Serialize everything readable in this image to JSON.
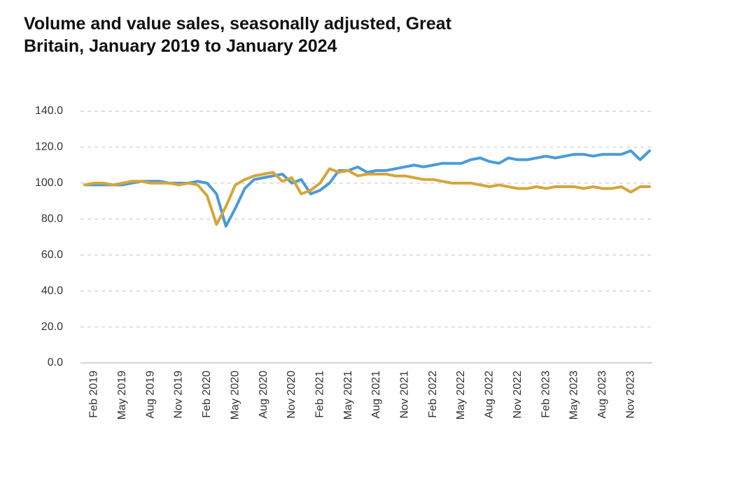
{
  "chart_data": {
    "type": "line",
    "title": "Volume and value sales, seasonally adjusted, Great Britain, January 2019 to January 2024",
    "categories": [
      null,
      "Feb 2019",
      null,
      null,
      "May 2019",
      null,
      null,
      "Aug 2019",
      null,
      null,
      "Nov 2019",
      null,
      null,
      "Feb 2020",
      null,
      null,
      "May 2020",
      null,
      null,
      "Aug 2020",
      null,
      null,
      "Nov 2020",
      null,
      null,
      "Feb 2021",
      null,
      null,
      "May 2021",
      null,
      null,
      "Aug 2021",
      null,
      null,
      "Nov 2021",
      null,
      null,
      "Feb 2022",
      null,
      null,
      "May 2022",
      null,
      null,
      "Aug 2022",
      null,
      null,
      "Nov 2022",
      null,
      null,
      "Feb 2023",
      null,
      null,
      "May 2023",
      null,
      null,
      "Aug 2023",
      null,
      null,
      "Nov 2023",
      null,
      null
    ],
    "series": [
      {
        "color": "#4a9bd8",
        "values": [
          99,
          99,
          99,
          99,
          99,
          100,
          101,
          101,
          101,
          100,
          100,
          100,
          101,
          100,
          94,
          76,
          86,
          97,
          102,
          103,
          104,
          105,
          100,
          102,
          94,
          96,
          100,
          107,
          107,
          109,
          106,
          107,
          107,
          108,
          109,
          110,
          109,
          110,
          111,
          111,
          111,
          113,
          114,
          112,
          111,
          114,
          113,
          113,
          114,
          115,
          114,
          115,
          116,
          116,
          115,
          116,
          116,
          116,
          118,
          113,
          118
        ]
      },
      {
        "color": "#d4a63a",
        "values": [
          99,
          100,
          100,
          99,
          100,
          101,
          101,
          100,
          100,
          100,
          99,
          100,
          99,
          93,
          77,
          87,
          99,
          102,
          104,
          105,
          106,
          101,
          103,
          94,
          96,
          100,
          108,
          106,
          107,
          104,
          105,
          105,
          105,
          104,
          104,
          103,
          102,
          102,
          101,
          100,
          100,
          100,
          99,
          98,
          99,
          98,
          97,
          97,
          98,
          97,
          98,
          98,
          98,
          97,
          98,
          97,
          97,
          98,
          95,
          98,
          98
        ]
      }
    ],
    "ylim": [
      0,
      140
    ],
    "yticks": [
      {
        "value": 0,
        "label": "0.0"
      },
      {
        "value": 20,
        "label": "20.0"
      },
      {
        "value": 40,
        "label": "40.0"
      },
      {
        "value": 60,
        "label": "60.0"
      },
      {
        "value": 80,
        "label": "80.0"
      },
      {
        "value": 100,
        "label": "100.0"
      },
      {
        "value": 120,
        "label": "120.0"
      },
      {
        "value": 140,
        "label": "140.0"
      }
    ],
    "grid": true
  }
}
